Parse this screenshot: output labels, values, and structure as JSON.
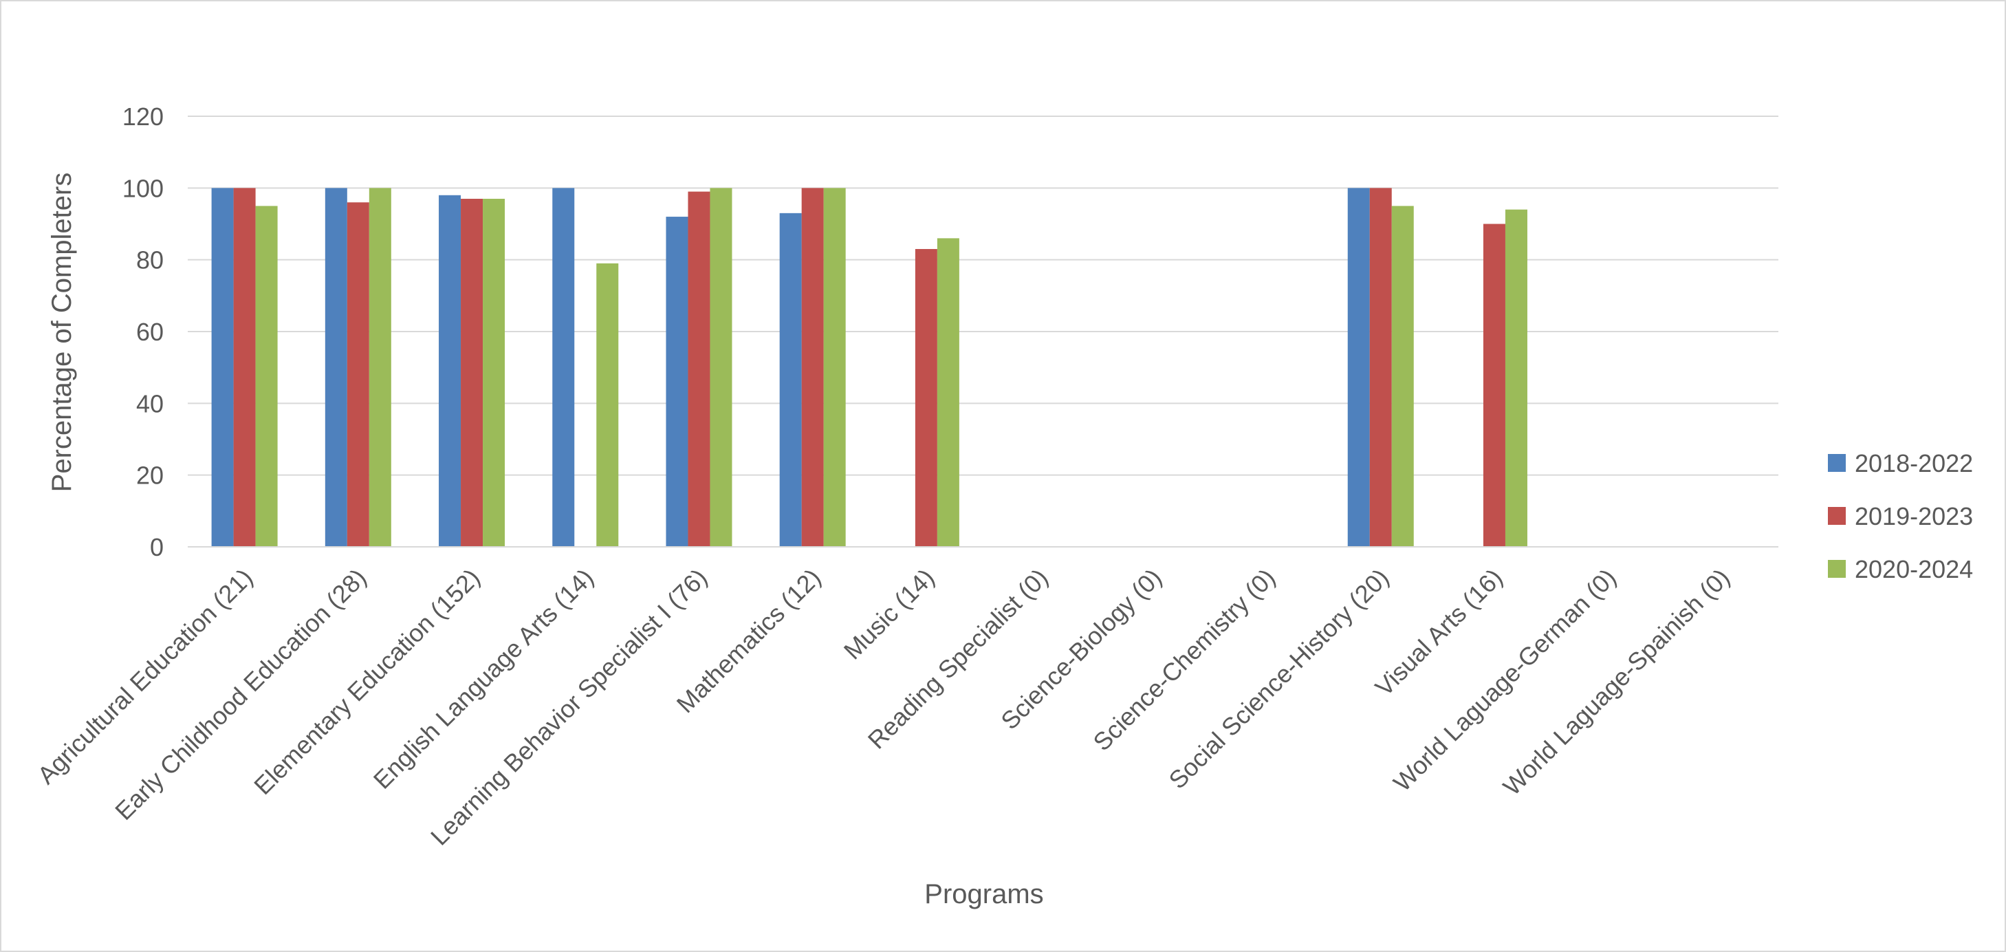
{
  "chart_data": {
    "type": "bar",
    "title": "",
    "xlabel": "Programs",
    "ylabel": "Percentage of Completers",
    "ylim": [
      0,
      120
    ],
    "yticks": [
      0,
      20,
      40,
      60,
      80,
      100,
      120
    ],
    "grid": true,
    "legend_position": "right",
    "categories": [
      "Agricultural Education (21)",
      "Early Childhood Education (28)",
      "Elementary Education (152)",
      "English Language Arts (14)",
      "Learning Behavior Specialist I (76)",
      "Mathematics (12)",
      "Music (14)",
      "Reading Specialist (0)",
      "Science-Biology (0)",
      "Science-Chemistry (0)",
      "Social Science-History (20)",
      "Visual Arts (16)",
      "World Laguage-German (0)",
      "World Laguage-Spainish (0)"
    ],
    "series": [
      {
        "name": "2018-2022",
        "color": "#4f81bd",
        "values": [
          100,
          100,
          98,
          100,
          92,
          93,
          0,
          0,
          0,
          0,
          100,
          0,
          0,
          0
        ]
      },
      {
        "name": "2019-2023",
        "color": "#c0504d",
        "values": [
          100,
          96,
          97,
          0,
          99,
          100,
          83,
          0,
          0,
          0,
          100,
          90,
          0,
          0
        ]
      },
      {
        "name": "2020-2024",
        "color": "#9bbb59",
        "values": [
          95,
          100,
          97,
          79,
          100,
          100,
          86,
          0,
          0,
          0,
          95,
          94,
          0,
          0
        ]
      }
    ]
  }
}
